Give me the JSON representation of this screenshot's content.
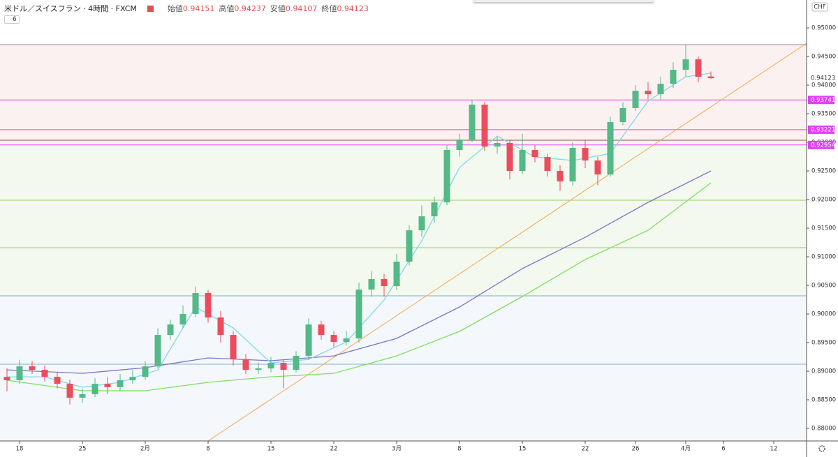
{
  "header": {
    "symbol": "米ドル／スイスフラン",
    "interval": "4時間",
    "source": "FXCM",
    "indicator_count": "6",
    "ohlc": [
      {
        "label": "始値",
        "value": "0.94151"
      },
      {
        "label": "高値",
        "value": "0.94237"
      },
      {
        "label": "安値",
        "value": "0.94107"
      },
      {
        "label": "終値",
        "value": "0.94123"
      }
    ]
  },
  "chart_data": {
    "type": "candlestick",
    "x": [
      -1,
      0,
      1,
      2,
      3,
      4,
      5,
      6,
      7,
      8,
      9,
      10,
      11,
      12,
      13,
      14,
      15,
      16,
      17,
      18,
      19,
      20,
      21,
      22,
      23,
      24,
      25,
      26,
      27,
      28,
      29,
      30,
      31,
      32,
      33,
      34,
      35,
      36,
      37,
      38,
      39,
      40,
      41,
      42,
      43,
      44,
      45,
      46,
      47,
      48,
      49,
      50,
      51,
      52,
      53,
      54,
      55
    ],
    "open": [
      0.889,
      0.88842,
      0.89085,
      0.89024,
      0.88902,
      0.8878,
      0.88537,
      0.88598,
      0.8878,
      0.8872,
      0.88842,
      0.88902,
      0.89085,
      0.89634,
      0.89817,
      0.9,
      0.90366,
      0.89939,
      0.89634,
      0.89207,
      0.89024,
      0.89049,
      0.89146,
      0.89024,
      0.89268,
      0.89817,
      0.89634,
      0.89512,
      0.89573,
      0.90427,
      0.9061,
      0.90488,
      0.90915,
      0.91463,
      0.91707,
      0.91951,
      0.92866,
      0.93049,
      0.93659,
      0.92927,
      0.92988,
      0.925,
      0.92866,
      0.92744,
      0.925,
      0.92317,
      0.92902,
      0.92683,
      0.92439,
      0.93354,
      0.93598,
      0.93902,
      0.93841,
      0.94024,
      0.94268,
      0.94451,
      0.94151
    ],
    "high": [
      0.8905,
      0.892,
      0.8918,
      0.891,
      0.8898,
      0.8885,
      0.887,
      0.8888,
      0.889,
      0.8895,
      0.8902,
      0.8918,
      0.8975,
      0.899,
      0.9015,
      0.9048,
      0.9042,
      0.9005,
      0.897,
      0.893,
      0.8915,
      0.8925,
      0.892,
      0.8935,
      0.8992,
      0.8988,
      0.897,
      0.897,
      0.9055,
      0.9075,
      0.907,
      0.9105,
      0.9155,
      0.919,
      0.9205,
      0.9295,
      0.9315,
      0.93741,
      0.937,
      0.931,
      0.9305,
      0.9315,
      0.9295,
      0.928,
      0.926,
      0.93,
      0.9305,
      0.9275,
      0.9345,
      0.937,
      0.94,
      0.9405,
      0.9415,
      0.944,
      0.947,
      0.945,
      0.94237
    ],
    "low": [
      0.8865,
      0.8878,
      0.8895,
      0.8882,
      0.887,
      0.8842,
      0.8845,
      0.8855,
      0.886,
      0.8865,
      0.8878,
      0.8885,
      0.8905,
      0.8955,
      0.8975,
      0.8995,
      0.8985,
      0.895,
      0.891,
      0.8895,
      0.8895,
      0.8898,
      0.887,
      0.8898,
      0.892,
      0.8955,
      0.8942,
      0.8945,
      0.895,
      0.903,
      0.903,
      0.9042,
      0.9085,
      0.9135,
      0.916,
      0.919,
      0.9275,
      0.93,
      0.9285,
      0.928,
      0.9235,
      0.9245,
      0.9265,
      0.924,
      0.9215,
      0.9225,
      0.9255,
      0.9225,
      0.924,
      0.933,
      0.9355,
      0.9375,
      0.9375,
      0.9395,
      0.9415,
      0.9405,
      0.94107
    ],
    "close": [
      0.88842,
      0.89085,
      0.89024,
      0.88902,
      0.8878,
      0.88537,
      0.88598,
      0.8878,
      0.8872,
      0.88842,
      0.88902,
      0.89085,
      0.89634,
      0.89817,
      0.9,
      0.90366,
      0.89939,
      0.89634,
      0.89207,
      0.89024,
      0.89049,
      0.89146,
      0.89024,
      0.89268,
      0.89817,
      0.89634,
      0.89512,
      0.89573,
      0.90427,
      0.9061,
      0.90488,
      0.90915,
      0.91463,
      0.91707,
      0.91951,
      0.92866,
      0.93049,
      0.93659,
      0.92927,
      0.92988,
      0.925,
      0.92866,
      0.92744,
      0.925,
      0.92317,
      0.92902,
      0.92683,
      0.92439,
      0.93354,
      0.93598,
      0.93902,
      0.93841,
      0.94024,
      0.94268,
      0.94451,
      0.94146,
      0.94123
    ],
    "up_color": "#53b987",
    "down_color": "#eb4d5c",
    "xlim": [
      -1.556,
      62.611
    ],
    "xticks": [
      {
        "value": 0,
        "label": "18"
      },
      {
        "value": 5,
        "label": "25"
      },
      {
        "value": 10,
        "label": "2月"
      },
      {
        "value": 15,
        "label": "8"
      },
      {
        "value": 20,
        "label": "15"
      },
      {
        "value": 25,
        "label": "22"
      },
      {
        "value": 30,
        "label": "3月"
      },
      {
        "value": 35,
        "label": "8"
      },
      {
        "value": 40,
        "label": "15"
      },
      {
        "value": 45,
        "label": "22"
      },
      {
        "value": 49,
        "label": "26"
      },
      {
        "value": 53,
        "label": "4月"
      },
      {
        "value": 56,
        "label": "6"
      },
      {
        "value": 60,
        "label": "12"
      }
    ],
    "ylim": [
      0.87781,
      0.95488
    ],
    "yticks": [
      {
        "value": 0.88,
        "label": "0.88000"
      },
      {
        "value": 0.885,
        "label": "0.88500"
      },
      {
        "value": 0.89,
        "label": "0.89000"
      },
      {
        "value": 0.895,
        "label": "0.89500"
      },
      {
        "value": 0.9,
        "label": "0.90000"
      },
      {
        "value": 0.905,
        "label": "0.90500"
      },
      {
        "value": 0.91,
        "label": "0.91000"
      },
      {
        "value": 0.915,
        "label": "0.91500"
      },
      {
        "value": 0.92,
        "label": "0.92000"
      },
      {
        "value": 0.925,
        "label": "0.92500"
      },
      {
        "value": 0.93,
        "label": "0.93000"
      },
      {
        "value": 0.935,
        "label": "0.93500"
      },
      {
        "value": 0.94,
        "label": "0.94000"
      },
      {
        "value": 0.945,
        "label": "0.94500"
      },
      {
        "value": 0.95,
        "label": "0.95000"
      }
    ],
    "grid": false,
    "currency": "CHF",
    "last_price": {
      "value": 0.94123,
      "label": "0.94123"
    },
    "bands": [
      {
        "range": [
          0.94707,
          0.92954
        ],
        "color": "#fcf1f1"
      },
      {
        "range": [
          0.92954,
          0.90317
        ],
        "color": "#f3f9ee"
      },
      {
        "range": [
          0.90317,
          0.87781
        ],
        "color": "#f4f7fb"
      }
    ],
    "levels": [
      {
        "value": 0.94707,
        "color": "#8d8d8d"
      },
      {
        "value": 0.93741,
        "label": "0.93741",
        "color": "#e040fb"
      },
      {
        "value": 0.93221,
        "label": "0.93221",
        "color": "#e040fb"
      },
      {
        "value": 0.93037,
        "color": "#8d4d4d"
      },
      {
        "value": 0.92954,
        "label": "0.92954",
        "color": "#e040fb"
      },
      {
        "value": 0.91988,
        "color": "#9ccc65"
      },
      {
        "value": 0.91159,
        "color": "#9ccc65"
      },
      {
        "value": 0.90317,
        "color": "#80b0b8"
      },
      {
        "value": 0.89122,
        "color": "#80b0c8"
      }
    ],
    "lines": [
      {
        "color": "#7e74c8",
        "x": [
          -1,
          5,
          10,
          15,
          20,
          25,
          30,
          35,
          40,
          45,
          50,
          55
        ],
        "values": [
          0.89024,
          0.88963,
          0.89061,
          0.89232,
          0.89183,
          0.89268,
          0.89573,
          0.90122,
          0.90793,
          0.91341,
          0.91951,
          0.925
        ]
      },
      {
        "color": "#7ee061",
        "x": [
          -1,
          5,
          10,
          15,
          20,
          25,
          30,
          35,
          40,
          45,
          50,
          55
        ],
        "values": [
          0.88842,
          0.88659,
          0.88659,
          0.88805,
          0.88902,
          0.88963,
          0.89268,
          0.89695,
          0.90305,
          0.90951,
          0.91463,
          0.92293
        ]
      },
      {
        "color": "#7fd8ec",
        "x": [
          -1,
          2,
          5,
          8,
          11,
          14,
          17,
          20,
          23,
          26,
          29,
          32,
          35,
          38,
          41,
          44,
          47,
          50,
          53,
          55
        ],
        "values": [
          0.88902,
          0.88902,
          0.8872,
          0.88805,
          0.89024,
          0.90122,
          0.89756,
          0.89146,
          0.89207,
          0.89512,
          0.90244,
          0.9128,
          0.92561,
          0.9311,
          0.92744,
          0.92683,
          0.92805,
          0.9372,
          0.94146,
          0.94207
        ]
      }
    ],
    "trendline": {
      "color": "#f5a64a",
      "x": [
        15,
        62.611
      ],
      "values": [
        0.87781,
        0.94732
      ]
    }
  }
}
